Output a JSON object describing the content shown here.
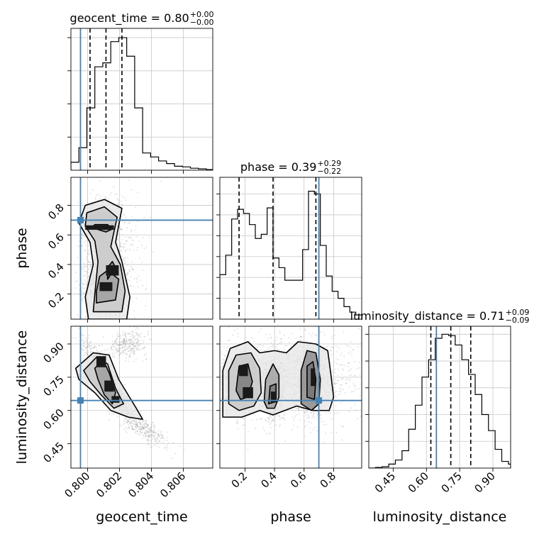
{
  "chart_data": {
    "type": "corner",
    "colors": {
      "truth": "#4682b4",
      "line": "#000000",
      "grid": "#c8c8c8",
      "scatter": "#9a9a9a"
    },
    "parameters": [
      {
        "name": "geocent_time",
        "label": "geocent_time",
        "range": [
          0.79895,
          0.80785
        ],
        "truth": 0.79955,
        "ticks": [
          0.8,
          0.802,
          0.804,
          0.806
        ],
        "tick_labels": [
          "0.800",
          "0.802",
          "0.804",
          "0.806"
        ]
      },
      {
        "name": "phase",
        "label": "phase",
        "range": [
          0.03,
          0.99
        ],
        "truth": 0.7,
        "ticks": [
          0.2,
          0.4,
          0.6,
          0.8
        ],
        "tick_labels": [
          "0.2",
          "0.4",
          "0.6",
          "0.8"
        ]
      },
      {
        "name": "luminosity_distance",
        "label": "luminosity_distance",
        "range": [
          0.34,
          0.98
        ],
        "truth": 0.645,
        "ticks": [
          0.45,
          0.6,
          0.75,
          0.9
        ],
        "tick_labels": [
          "0.45",
          "0.60",
          "0.75",
          "0.90"
        ]
      }
    ],
    "diagonal": [
      {
        "param": "geocent_time",
        "title": {
          "prefix": "geocent_time = ",
          "median": "0.80",
          "plus": "+0.00",
          "minus": "−0.00"
        },
        "quantiles": [
          0.80015,
          0.80115,
          0.80215
        ],
        "bins": [
          0.79895,
          0.79945,
          0.79995,
          0.80045,
          0.80095,
          0.80145,
          0.80195,
          0.80245,
          0.80295,
          0.80345,
          0.80395,
          0.80445,
          0.80495,
          0.80545,
          0.80595,
          0.80645,
          0.80695,
          0.80745,
          0.80795
        ],
        "counts": [
          0.06,
          0.17,
          0.47,
          0.78,
          0.81,
          0.97,
          1.0,
          0.86,
          0.47,
          0.13,
          0.1,
          0.07,
          0.05,
          0.03,
          0.025,
          0.015,
          0.01,
          0.005
        ],
        "ylim": [
          0,
          1.07
        ],
        "yticks": [
          0.25,
          0.5,
          0.75,
          1.0
        ]
      },
      {
        "param": "phase",
        "title": {
          "prefix": "phase = ",
          "median": "0.39",
          "plus": "+0.29",
          "minus": "−0.22"
        },
        "quantiles": [
          0.16,
          0.39,
          0.68
        ],
        "bins": [
          0.03,
          0.07,
          0.11,
          0.15,
          0.19,
          0.23,
          0.27,
          0.31,
          0.35,
          0.39,
          0.43,
          0.47,
          0.51,
          0.55,
          0.59,
          0.63,
          0.67,
          0.71,
          0.75,
          0.79,
          0.83,
          0.87,
          0.91,
          0.95,
          0.99
        ],
        "counts": [
          0.32,
          0.46,
          0.72,
          0.79,
          0.76,
          0.68,
          0.58,
          0.61,
          0.8,
          0.44,
          0.37,
          0.28,
          0.28,
          0.28,
          0.5,
          0.92,
          0.9,
          0.53,
          0.31,
          0.2,
          0.15,
          0.09,
          0.05,
          0.03
        ],
        "ylim": [
          0,
          1.02
        ],
        "yticks": [
          0.15,
          0.3,
          0.45,
          0.6,
          0.75,
          0.9
        ]
      },
      {
        "param": "luminosity_distance",
        "title": {
          "prefix": "luminosity_distance = ",
          "median": "0.71",
          "plus": "+0.09",
          "minus": "−0.09"
        },
        "quantiles": [
          0.62,
          0.71,
          0.8
        ],
        "bins": [
          0.34,
          0.37,
          0.4,
          0.43,
          0.46,
          0.49,
          0.52,
          0.55,
          0.58,
          0.61,
          0.64,
          0.67,
          0.7,
          0.73,
          0.76,
          0.79,
          0.82,
          0.85,
          0.88,
          0.91,
          0.94,
          0.97,
          0.98
        ],
        "counts": [
          0.0,
          0.005,
          0.01,
          0.03,
          0.06,
          0.13,
          0.29,
          0.47,
          0.68,
          0.81,
          0.97,
          1.0,
          0.99,
          0.92,
          0.81,
          0.7,
          0.55,
          0.4,
          0.28,
          0.14,
          0.05,
          0.03
        ],
        "ylim": [
          0,
          1.06
        ],
        "yticks": [
          0.2,
          0.4,
          0.6,
          0.8,
          1.0
        ]
      }
    ],
    "pairs": [
      {
        "x": "geocent_time",
        "y": "phase",
        "clusters": [
          {
            "cx": 0.80075,
            "cy": 0.65,
            "sx": 0.00045,
            "sy": 0.055,
            "n": 700
          },
          {
            "cx": 0.80115,
            "cy": 0.26,
            "sx": 0.0006,
            "sy": 0.11,
            "n": 1000
          },
          {
            "cx": 0.80135,
            "cy": 0.44,
            "sx": 0.0009,
            "sy": 0.24,
            "n": 800
          }
        ],
        "peaks": [
          {
            "x": 0.80075,
            "y": 0.65,
            "w": 0.0018,
            "h": 0.03
          },
          {
            "x": 0.80115,
            "y": 0.25,
            "w": 0.0008,
            "h": 0.06
          },
          {
            "x": 0.80155,
            "y": 0.36,
            "w": 0.0008,
            "h": 0.07
          }
        ],
        "contours": [
          [
            [
              0.80005,
              0.03
            ],
            [
              0.80245,
              0.03
            ],
            [
              0.80265,
              0.18
            ],
            [
              0.80215,
              0.42
            ],
            [
              0.80175,
              0.55
            ],
            [
              0.80215,
              0.78
            ],
            [
              0.80105,
              0.84
            ],
            [
              0.79985,
              0.8
            ],
            [
              0.79945,
              0.68
            ],
            [
              0.80015,
              0.55
            ],
            [
              0.80035,
              0.4
            ],
            [
              0.79985,
              0.18
            ]
          ],
          [
            [
              0.80035,
              0.08
            ],
            [
              0.80215,
              0.08
            ],
            [
              0.80235,
              0.22
            ],
            [
              0.80205,
              0.4
            ],
            [
              0.80145,
              0.52
            ],
            [
              0.80185,
              0.72
            ],
            [
              0.80105,
              0.79
            ],
            [
              0.79995,
              0.75
            ],
            [
              0.79985,
              0.66
            ],
            [
              0.80045,
              0.56
            ],
            [
              0.80065,
              0.42
            ],
            [
              0.80045,
              0.2
            ]
          ],
          [
            [
              0.80055,
              0.14
            ],
            [
              0.80175,
              0.16
            ],
            [
              0.80195,
              0.3
            ],
            [
              0.80125,
              0.36
            ],
            [
              0.80075,
              0.32
            ],
            [
              0.80055,
              0.22
            ]
          ],
          [
            [
              0.80025,
              0.65
            ],
            [
              0.80115,
              0.62
            ],
            [
              0.80155,
              0.64
            ],
            [
              0.80125,
              0.67
            ],
            [
              0.80045,
              0.67
            ]
          ],
          [
            [
              0.80125,
              0.3
            ],
            [
              0.80175,
              0.38
            ],
            [
              0.80155,
              0.42
            ],
            [
              0.80125,
              0.38
            ]
          ]
        ]
      },
      {
        "x": "geocent_time",
        "y": "luminosity_distance",
        "clusters": [
          {
            "cx": 0.80125,
            "cy": 0.745,
            "sx": 0.0006,
            "sy": 0.07,
            "n": 1400,
            "corr": -0.9
          },
          {
            "cx": 0.80345,
            "cy": 0.52,
            "sx": 0.0008,
            "sy": 0.04,
            "n": 350,
            "corr": -0.8
          },
          {
            "cx": 0.8025,
            "cy": 0.9,
            "sx": 0.0006,
            "sy": 0.03,
            "n": 300,
            "corr": 0.2
          }
        ],
        "peaks": [
          {
            "x": 0.80085,
            "y": 0.82,
            "w": 0.0006,
            "h": 0.05
          },
          {
            "x": 0.80135,
            "y": 0.71,
            "w": 0.0006,
            "h": 0.05
          },
          {
            "x": 0.80175,
            "y": 0.65,
            "w": 0.0005,
            "h": 0.03
          }
        ],
        "contours": [
          [
            [
              0.79925,
              0.79
            ],
            [
              0.80035,
              0.86
            ],
            [
              0.80135,
              0.85
            ],
            [
              0.80195,
              0.74
            ],
            [
              0.80305,
              0.61
            ],
            [
              0.80345,
              0.56
            ],
            [
              0.80255,
              0.57
            ],
            [
              0.80145,
              0.6
            ],
            [
              0.80045,
              0.68
            ],
            [
              0.79945,
              0.74
            ]
          ],
          [
            [
              0.79975,
              0.78
            ],
            [
              0.80055,
              0.84
            ],
            [
              0.80125,
              0.81
            ],
            [
              0.80175,
              0.7
            ],
            [
              0.80225,
              0.63
            ],
            [
              0.80165,
              0.61
            ],
            [
              0.80085,
              0.67
            ],
            [
              0.80015,
              0.73
            ]
          ],
          [
            [
              0.80045,
              0.79
            ],
            [
              0.80095,
              0.83
            ],
            [
              0.80135,
              0.77
            ],
            [
              0.80175,
              0.68
            ],
            [
              0.80155,
              0.63
            ],
            [
              0.80105,
              0.67
            ],
            [
              0.80065,
              0.74
            ]
          ]
        ]
      },
      {
        "x": "phase",
        "y": "luminosity_distance",
        "clusters": [
          {
            "cx": 0.2,
            "cy": 0.73,
            "sx": 0.07,
            "sy": 0.06,
            "n": 900
          },
          {
            "cx": 0.39,
            "cy": 0.69,
            "sx": 0.04,
            "sy": 0.07,
            "n": 650
          },
          {
            "cx": 0.65,
            "cy": 0.73,
            "sx": 0.05,
            "sy": 0.08,
            "n": 900
          },
          {
            "cx": 0.5,
            "cy": 0.75,
            "sx": 0.3,
            "sy": 0.1,
            "n": 1000
          }
        ],
        "peaks": [
          {
            "x": 0.19,
            "y": 0.78,
            "w": 0.06,
            "h": 0.05
          },
          {
            "x": 0.22,
            "y": 0.68,
            "w": 0.07,
            "h": 0.05
          },
          {
            "x": 0.39,
            "y": 0.66,
            "w": 0.03,
            "h": 0.05
          },
          {
            "x": 0.66,
            "y": 0.75,
            "w": 0.03,
            "h": 0.08
          }
        ],
        "contours": [
          [
            [
              0.05,
              0.57
            ],
            [
              0.05,
              0.78
            ],
            [
              0.1,
              0.88
            ],
            [
              0.22,
              0.91
            ],
            [
              0.3,
              0.86
            ],
            [
              0.4,
              0.87
            ],
            [
              0.48,
              0.86
            ],
            [
              0.56,
              0.91
            ],
            [
              0.68,
              0.9
            ],
            [
              0.76,
              0.87
            ],
            [
              0.78,
              0.77
            ],
            [
              0.8,
              0.66
            ],
            [
              0.77,
              0.6
            ],
            [
              0.66,
              0.6
            ],
            [
              0.55,
              0.62
            ],
            [
              0.47,
              0.6
            ],
            [
              0.39,
              0.58
            ],
            [
              0.3,
              0.6
            ],
            [
              0.18,
              0.57
            ]
          ],
          [
            [
              0.09,
              0.63
            ],
            [
              0.09,
              0.78
            ],
            [
              0.14,
              0.85
            ],
            [
              0.24,
              0.86
            ],
            [
              0.3,
              0.79
            ],
            [
              0.31,
              0.68
            ],
            [
              0.26,
              0.62
            ],
            [
              0.16,
              0.6
            ]
          ],
          [
            [
              0.33,
              0.64
            ],
            [
              0.34,
              0.74
            ],
            [
              0.39,
              0.81
            ],
            [
              0.43,
              0.76
            ],
            [
              0.43,
              0.66
            ],
            [
              0.4,
              0.61
            ],
            [
              0.35,
              0.61
            ]
          ],
          [
            [
              0.58,
              0.63
            ],
            [
              0.58,
              0.78
            ],
            [
              0.62,
              0.87
            ],
            [
              0.68,
              0.86
            ],
            [
              0.71,
              0.74
            ],
            [
              0.7,
              0.63
            ],
            [
              0.65,
              0.6
            ]
          ],
          [
            [
              0.14,
              0.69
            ],
            [
              0.16,
              0.8
            ],
            [
              0.22,
              0.81
            ],
            [
              0.25,
              0.73
            ],
            [
              0.22,
              0.66
            ],
            [
              0.17,
              0.65
            ]
          ],
          [
            [
              0.36,
              0.63
            ],
            [
              0.37,
              0.71
            ],
            [
              0.41,
              0.72
            ],
            [
              0.41,
              0.64
            ]
          ],
          [
            [
              0.62,
              0.66
            ],
            [
              0.62,
              0.8
            ],
            [
              0.66,
              0.82
            ],
            [
              0.68,
              0.74
            ],
            [
              0.67,
              0.65
            ]
          ]
        ]
      }
    ]
  }
}
